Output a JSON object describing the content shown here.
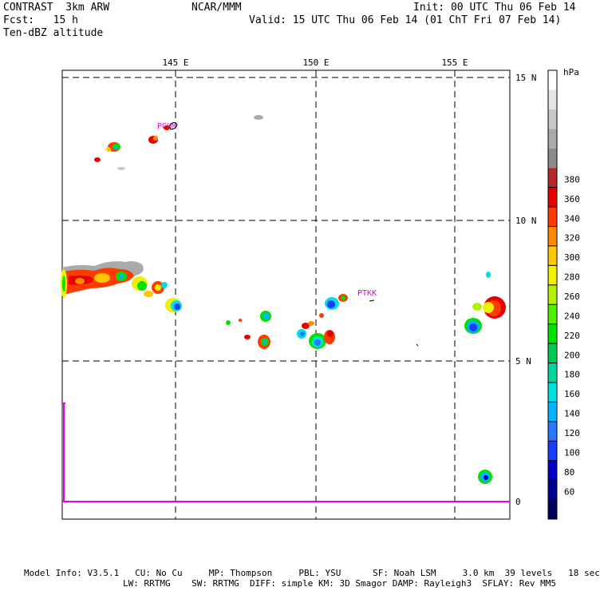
{
  "header": {
    "title_left": "CONTRAST  3km ARW",
    "title_center": "NCAR/MMM",
    "init": "Init: 00 UTC Thu 06 Feb 14",
    "fcst": "Fcst:   15 h",
    "valid": "Valid: 15 UTC Thu 06 Feb 14 (01 ChT Fri 07 Feb 14)",
    "field": "Ten-dBZ altitude"
  },
  "axes": {
    "lon_labels": [
      "145 E",
      "150 E",
      "155 E"
    ],
    "lat_labels": [
      "15 N",
      "10 N",
      "5 N",
      "0"
    ]
  },
  "stations": [
    "PGUM",
    "PTKK"
  ],
  "colorbar": {
    "unit": "hPa",
    "labels": [
      "60",
      "80",
      "100",
      "120",
      "140",
      "160",
      "180",
      "200",
      "220",
      "240",
      "260",
      "280",
      "300",
      "320",
      "340",
      "360",
      "380"
    ],
    "colors": [
      "#00005a",
      "#000090",
      "#0000c8",
      "#1a3cff",
      "#2a78ff",
      "#00b4ff",
      "#00e0e0",
      "#00d7a0",
      "#00c850",
      "#00e100",
      "#50f000",
      "#b4f000",
      "#f0f000",
      "#ffc800",
      "#ff8c00",
      "#ff3c00",
      "#e60000",
      "#b42828",
      "#8c8c8c",
      "#aaaaaa",
      "#c8c8c8",
      "#e6e6e6",
      "#ffffff"
    ]
  },
  "footer": {
    "line1": "Model Info: V3.5.1   CU: No Cu     MP: Thompson     PBL: YSU      SF: Noah LSM     3.0 km  39 levels   18 sec",
    "line2": "LW: RRTMG    SW: RRTMG  DIFF: simple KM: 3D Smagor DAMP: Rayleigh3  SFLAY: Rev MM5"
  }
}
